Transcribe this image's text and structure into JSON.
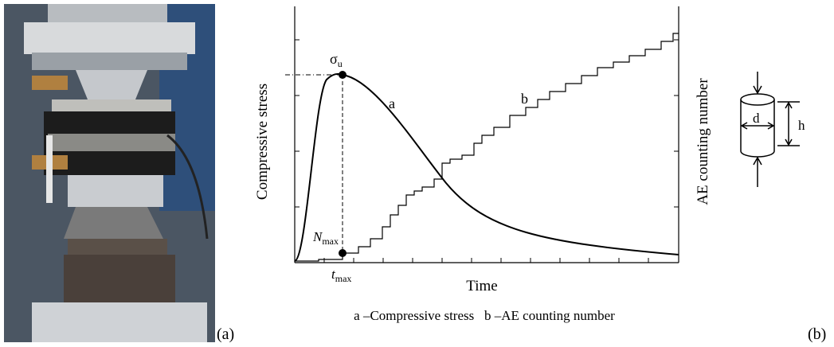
{
  "panel_a": {
    "label": "(a)"
  },
  "panel_b": {
    "label": "(b)",
    "y_axis_label": "Compressive stress",
    "y2_axis_label": "AE counting number",
    "x_axis_label": "Time",
    "peak_label": {
      "symbol": "σ",
      "subscript": "u"
    },
    "n_max_label": {
      "symbol": "N",
      "subscript": "max"
    },
    "t_max_label": {
      "symbol": "t",
      "subscript": "max"
    },
    "curve_a_label": "a",
    "curve_b_label": "b",
    "legend": "a –Compressive stress   b –AE counting number",
    "specimen": {
      "diameter_label": "d",
      "height_label": "h"
    }
  }
}
